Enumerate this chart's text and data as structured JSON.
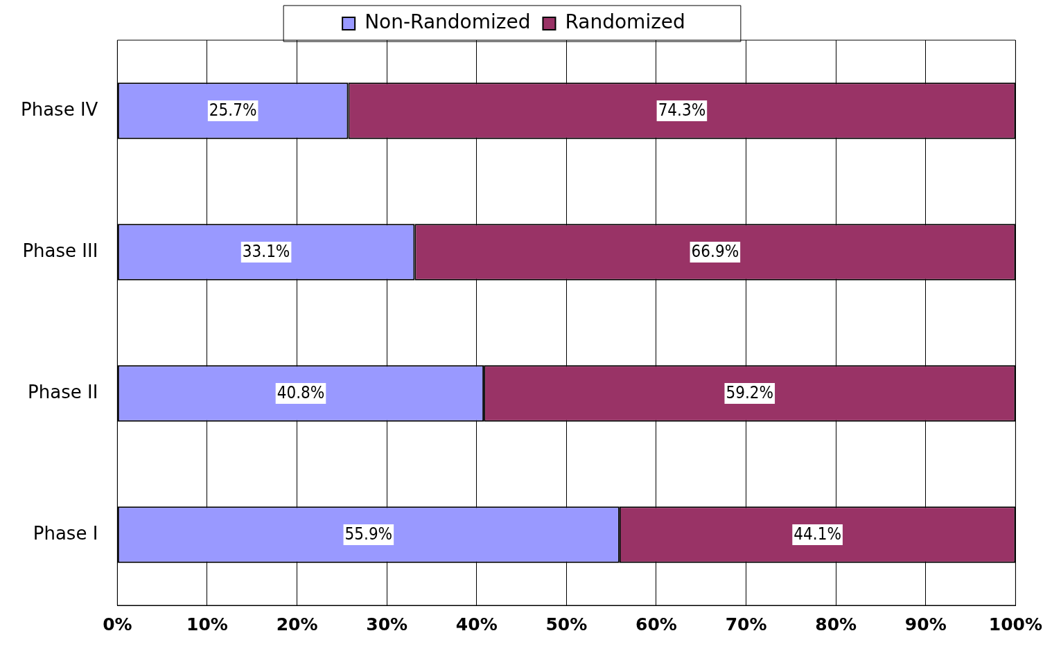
{
  "chart_data": {
    "type": "bar",
    "orientation": "horizontal",
    "stacked": true,
    "categories": [
      "Phase IV",
      "Phase III",
      "Phase II",
      "Phase I"
    ],
    "series": [
      {
        "name": "Non-Randomized",
        "color": "#9999ff",
        "values": [
          25.7,
          33.1,
          40.8,
          55.9
        ],
        "value_labels": [
          "25.7%",
          "33.1%",
          "40.8%",
          "55.9%"
        ]
      },
      {
        "name": "Randomized",
        "color": "#993366",
        "values": [
          74.3,
          66.9,
          59.2,
          44.1
        ],
        "value_labels": [
          "74.3%",
          "66.9%",
          "59.2%",
          "44.1%"
        ]
      }
    ],
    "xlim": [
      0,
      100
    ],
    "xticks": [
      {
        "value": 0,
        "label": "0%"
      },
      {
        "value": 10,
        "label": "10%"
      },
      {
        "value": 20,
        "label": "20%"
      },
      {
        "value": 30,
        "label": "30%"
      },
      {
        "value": 40,
        "label": "40%"
      },
      {
        "value": 50,
        "label": "50%"
      },
      {
        "value": 60,
        "label": "60%"
      },
      {
        "value": 70,
        "label": "70%"
      },
      {
        "value": 80,
        "label": "80%"
      },
      {
        "value": 90,
        "label": "90%"
      },
      {
        "value": 100,
        "label": "100%"
      }
    ],
    "grid": "x",
    "legend": "top"
  }
}
